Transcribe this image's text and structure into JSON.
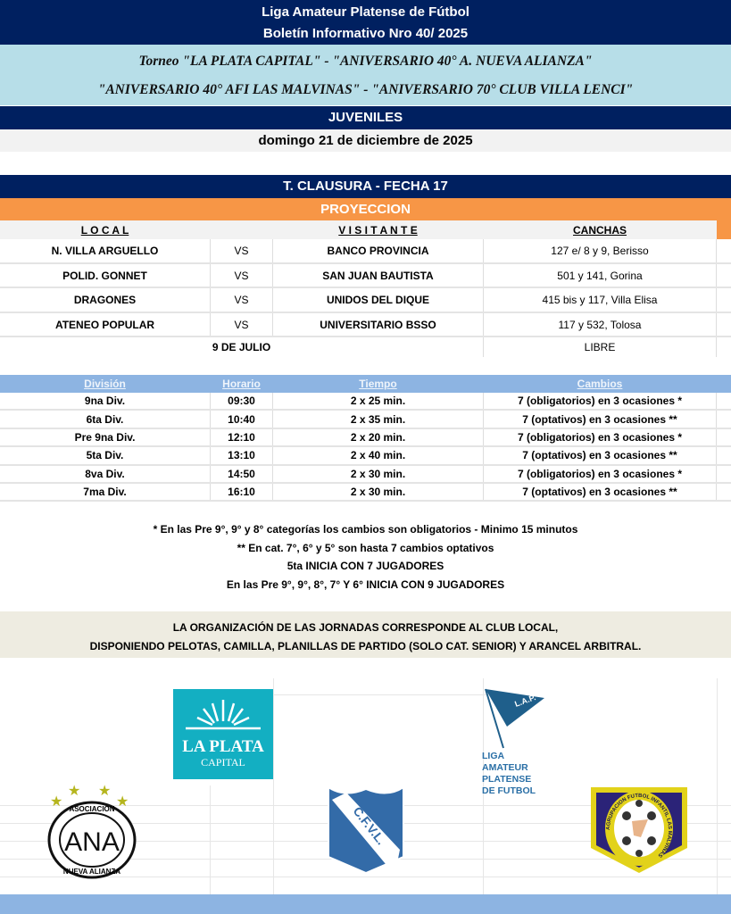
{
  "header": {
    "title": "Liga Amateur Platense de Fútbol",
    "bulletin": "Boletín Informativo Nro  40/ 2025"
  },
  "tournament": {
    "line1": "Torneo \"LA PLATA CAPITAL\" - \"ANIVERSARIO 40° A. NUEVA ALIANZA\"",
    "line2": "\"ANIVERSARIO 40° AFI LAS MALVINAS\" - \"ANIVERSARIO 70° CLUB VILLA LENCI\""
  },
  "category": "JUVENILES",
  "date": "domingo 21 de diciembre de 2025",
  "round": "T. CLAUSURA - FECHA 17",
  "zone": "PROYECCION",
  "fixtures": {
    "headers": {
      "local": "L O C A L",
      "visitor": "V I S I T A N T E",
      "venue": "CANCHAS"
    },
    "matches": [
      {
        "local": "N. VILLA ARGUELLO",
        "vs": "VS",
        "visitor": "BANCO PROVINCIA",
        "venue": "127 e/ 8 y 9, Berisso"
      },
      {
        "local": "POLID. GONNET",
        "vs": "VS",
        "visitor": "SAN JUAN BAUTISTA",
        "venue": "501 y 141, Gorina"
      },
      {
        "local": "DRAGONES",
        "vs": "VS",
        "visitor": "UNIDOS DEL DIQUE",
        "venue": "415 bis y 117, Villa Elisa"
      },
      {
        "local": "ATENEO POPULAR",
        "vs": "VS",
        "visitor": "UNIVERSITARIO BSSO",
        "venue": "117 y 532, Tolosa"
      }
    ],
    "bye": {
      "team": "9 DE JULIO",
      "label": "LIBRE"
    }
  },
  "schedule": {
    "headers": {
      "division": "División",
      "time": "Horario",
      "duration": "Tiempo",
      "subs": "Cambios"
    },
    "rows": [
      {
        "division": "9na Div.",
        "time": "09:30",
        "duration": "2 x 25 min.",
        "subs": "7 (obligatorios) en 3 ocasiones *"
      },
      {
        "division": "6ta Div.",
        "time": "10:40",
        "duration": "2 x 35 min.",
        "subs": "7 (optativos) en 3 ocasiones **"
      },
      {
        "division": "Pre 9na Div.",
        "time": "12:10",
        "duration": "2 x 20 min.",
        "subs": "7 (obligatorios) en 3 ocasiones *"
      },
      {
        "division": "5ta Div.",
        "time": "13:10",
        "duration": "2 x 40 min.",
        "subs": "7 (optativos) en 3 ocasiones **"
      },
      {
        "division": "8va Div.",
        "time": "14:50",
        "duration": "2 x 30 min.",
        "subs": "7 (obligatorios) en 3 ocasiones *"
      },
      {
        "division": "7ma Div.",
        "time": "16:10",
        "duration": "2 x 30 min.",
        "subs": "7 (optativos) en 3 ocasiones **"
      }
    ]
  },
  "notes": [
    "* En las Pre 9°, 9° y 8° categorías los cambios son obligatorios - Minimo 15 minutos",
    "** En cat. 7°, 6° y 5° son hasta 7 cambios optativos",
    "5ta INICIA CON 7 JUGADORES",
    "En las Pre 9°, 9°,  8°, 7° Y  6° INICIA CON 9 JUGADORES"
  ],
  "organization": {
    "line1": "LA ORGANIZACIÓN DE LAS JORNADAS CORRESPONDE AL CLUB LOCAL,",
    "line2": "DISPONIENDO PELOTAS, CAMILLA, PLANILLAS DE PARTIDO (SOLO CAT. SENIOR) Y ARANCEL ARBITRAL."
  },
  "logos": {
    "la_plata": {
      "line1": "LA PLATA",
      "line2": "CAPITAL"
    },
    "lapf": {
      "flag": "L.A.P.",
      "text": [
        "LIGA",
        "AMATEUR",
        "PLATENSE",
        "DE  FUTBOL"
      ]
    },
    "ana": {
      "top": "ASOCIACION",
      "mono": "ANA",
      "bottom": "NUEVA ALIANZA"
    },
    "cfvl": "C.F.V.L.",
    "malvinas": "AGRUPACION FUTBOL INFANTIL LAS MALVINAS"
  },
  "colors": {
    "navy": "#002060",
    "light_blue": "#B7DEE8",
    "orange": "#F79646",
    "table_blue": "#8DB4E2",
    "beige": "#EEECE1"
  }
}
